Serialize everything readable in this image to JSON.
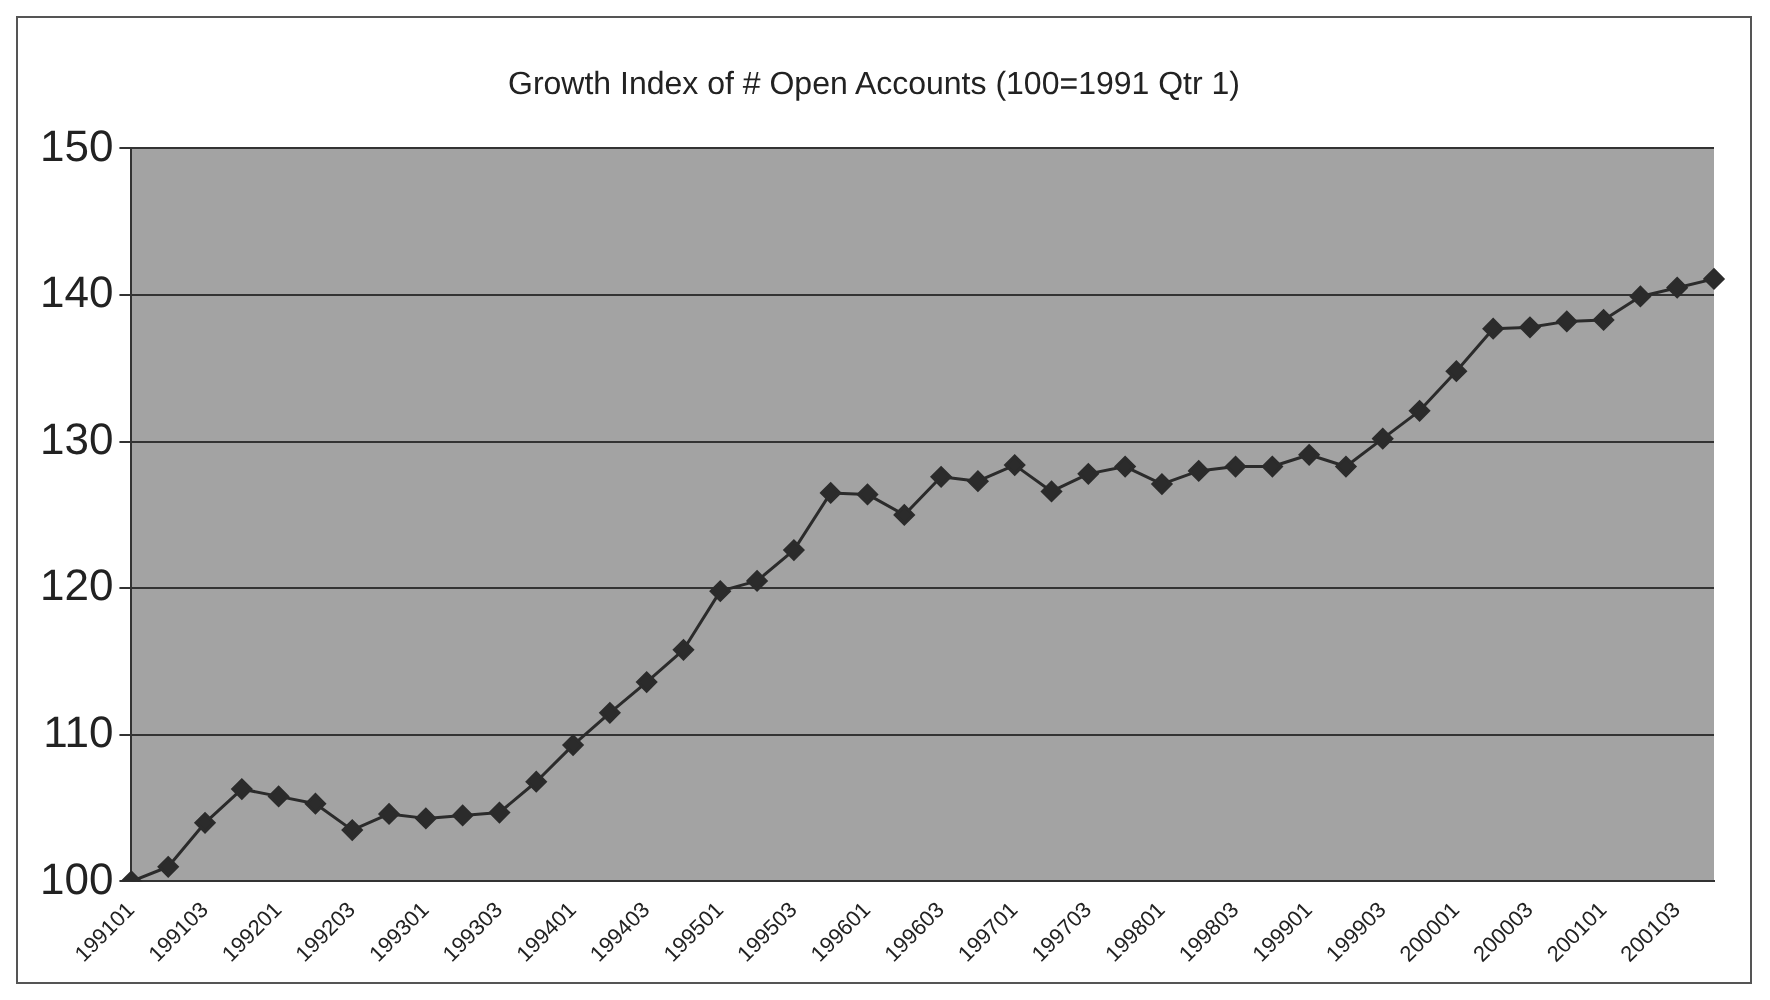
{
  "chart_data": {
    "type": "line",
    "title": "Growth Index of # Open Accounts (100=1991 Qtr 1)",
    "categories": [
      "199101",
      null,
      "199103",
      null,
      "199201",
      null,
      "199203",
      null,
      "199301",
      null,
      "199303",
      null,
      "199401",
      null,
      "199403",
      null,
      "199501",
      null,
      "199503",
      null,
      "199601",
      null,
      "199603",
      null,
      "199701",
      null,
      "199703",
      null,
      "199801",
      null,
      "199803",
      null,
      "199901",
      null,
      "199903",
      null,
      "200001",
      null,
      "200003",
      null,
      "200101",
      null,
      "200103",
      null
    ],
    "series": [
      {
        "color": "#2b2b2b",
        "values": [
          100,
          101,
          104,
          106.3,
          105.8,
          105.3,
          103.5,
          104.6,
          104.3,
          104.5,
          104.7,
          106.8,
          109.3,
          111.5,
          113.6,
          115.8,
          119.8,
          120.5,
          122.6,
          126.5,
          126.4,
          125,
          127.6,
          127.3,
          128.4,
          126.6,
          127.8,
          128.3,
          127.1,
          128,
          128.3,
          128.3,
          129.1,
          128.3,
          130.2,
          132.1,
          134.8,
          137.7,
          137.8,
          138.2,
          138.3,
          139.9,
          140.5,
          141.1
        ]
      }
    ],
    "ylim": [
      100,
      150
    ],
    "yticks": [
      100,
      110,
      120,
      130,
      140,
      150
    ],
    "grid": "y",
    "legend": false,
    "marker": "diamond",
    "line_style": "solid"
  }
}
